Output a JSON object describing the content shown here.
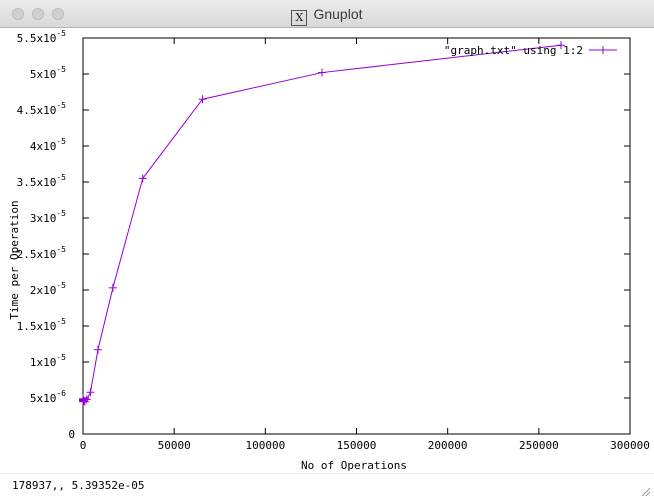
{
  "window": {
    "title": "Gnuplot",
    "title_icon": "x11-icon"
  },
  "status_bar": {
    "coords": "178937,,  5.39352e-05"
  },
  "colors": {
    "series": "#9400d3",
    "axis": "#000000",
    "background": "#ffffff"
  },
  "chart_data": {
    "type": "line",
    "title": "",
    "xlabel": "No of Operations",
    "ylabel": "Time per Operation",
    "xlim": [
      0,
      300000
    ],
    "ylim": [
      0,
      5.5e-05
    ],
    "grid": false,
    "legend_position": "top-right",
    "x_ticks": [
      {
        "value": 0,
        "label": "0"
      },
      {
        "value": 50000,
        "label": "50000"
      },
      {
        "value": 100000,
        "label": "100000"
      },
      {
        "value": 150000,
        "label": "150000"
      },
      {
        "value": 200000,
        "label": "200000"
      },
      {
        "value": 250000,
        "label": "250000"
      },
      {
        "value": 300000,
        "label": "300000"
      }
    ],
    "y_ticks": [
      {
        "value": 0,
        "mant": "0",
        "exp": ""
      },
      {
        "value": 5e-06,
        "mant": "5x10",
        "exp": "-6"
      },
      {
        "value": 1e-05,
        "mant": "1x10",
        "exp": "-5"
      },
      {
        "value": 1.5e-05,
        "mant": "1.5x10",
        "exp": "-5"
      },
      {
        "value": 2e-05,
        "mant": "2x10",
        "exp": "-5"
      },
      {
        "value": 2.5e-05,
        "mant": "2.5x10",
        "exp": "-5"
      },
      {
        "value": 3e-05,
        "mant": "3x10",
        "exp": "-5"
      },
      {
        "value": 3.5e-05,
        "mant": "3.5x10",
        "exp": "-5"
      },
      {
        "value": 4e-05,
        "mant": "4x10",
        "exp": "-5"
      },
      {
        "value": 4.5e-05,
        "mant": "4.5x10",
        "exp": "-5"
      },
      {
        "value": 5e-05,
        "mant": "5x10",
        "exp": "-5"
      },
      {
        "value": 5.5e-05,
        "mant": "5.5x10",
        "exp": "-5"
      }
    ],
    "series": [
      {
        "name": "\"graph.txt\" using 1:2",
        "x": [
          1,
          2,
          4,
          8,
          16,
          32,
          64,
          128,
          256,
          512,
          1024,
          2048,
          4096,
          8192,
          16384,
          32768,
          65536,
          131072,
          262144
        ],
        "y": [
          4.8e-06,
          4.9e-06,
          4.7e-06,
          4.8e-06,
          4.6e-06,
          4.7e-06,
          4.5e-06,
          4.6e-06,
          4.7e-06,
          4.6e-06,
          4.5e-06,
          4.8e-06,
          5.8e-06,
          1.17e-05,
          2.03e-05,
          3.55e-05,
          4.65e-05,
          5.02e-05,
          5.4e-05
        ]
      }
    ]
  }
}
